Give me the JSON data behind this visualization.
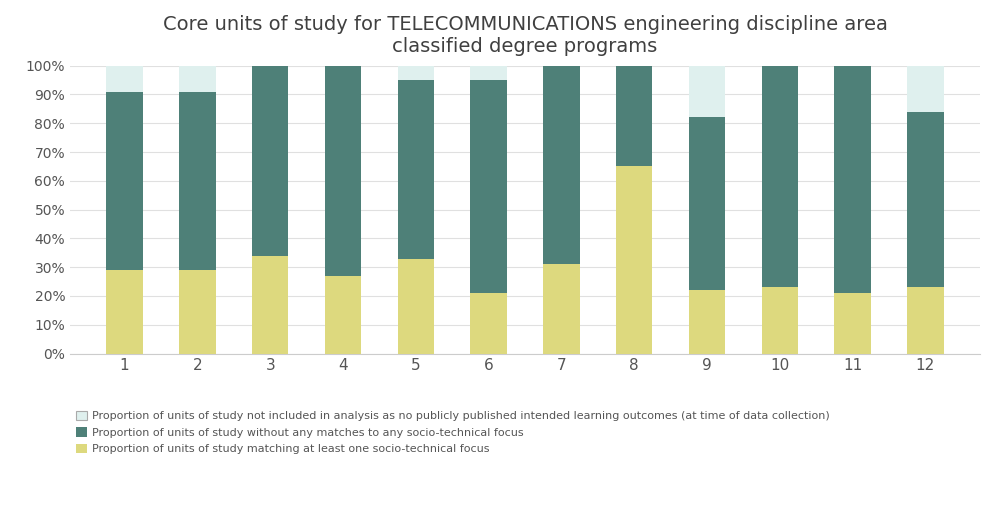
{
  "categories": [
    1,
    2,
    3,
    4,
    5,
    6,
    7,
    8,
    9,
    10,
    11,
    12
  ],
  "yellow": [
    0.29,
    0.29,
    0.34,
    0.27,
    0.33,
    0.21,
    0.31,
    0.65,
    0.22,
    0.23,
    0.21,
    0.23
  ],
  "teal": [
    0.62,
    0.62,
    0.66,
    0.73,
    0.62,
    0.74,
    0.69,
    0.35,
    0.6,
    0.77,
    0.79,
    0.61
  ],
  "light": [
    0.09,
    0.09,
    0.0,
    0.0,
    0.05,
    0.05,
    0.0,
    0.0,
    0.18,
    0.0,
    0.0,
    0.16
  ],
  "color_yellow": "#ddd97e",
  "color_teal": "#4e8078",
  "color_light": "#dff0ee",
  "title": "Core units of study for TELECOMMUNICATIONS engineering discipline area\nclassified degree programs",
  "title_fontsize": 14,
  "ylim": [
    0,
    1.0
  ],
  "yticks": [
    0.0,
    0.1,
    0.2,
    0.3,
    0.4,
    0.5,
    0.6,
    0.7,
    0.8,
    0.9,
    1.0
  ],
  "ytick_labels": [
    "0%",
    "10%",
    "20%",
    "30%",
    "40%",
    "50%",
    "60%",
    "70%",
    "80%",
    "90%",
    "100%"
  ],
  "legend_labels": [
    "Proportion of units of study not included in analysis as no publicly published intended learning outcomes (at time of data collection)",
    "Proportion of units of study without any matches to any socio-technical focus",
    "Proportion of units of study matching at least one socio-technical focus"
  ],
  "bar_width": 0.5,
  "background_color": "#ffffff",
  "grid_color": "#e0e0e0",
  "spine_color": "#cccccc",
  "tick_label_color": "#555555",
  "title_color": "#404040"
}
